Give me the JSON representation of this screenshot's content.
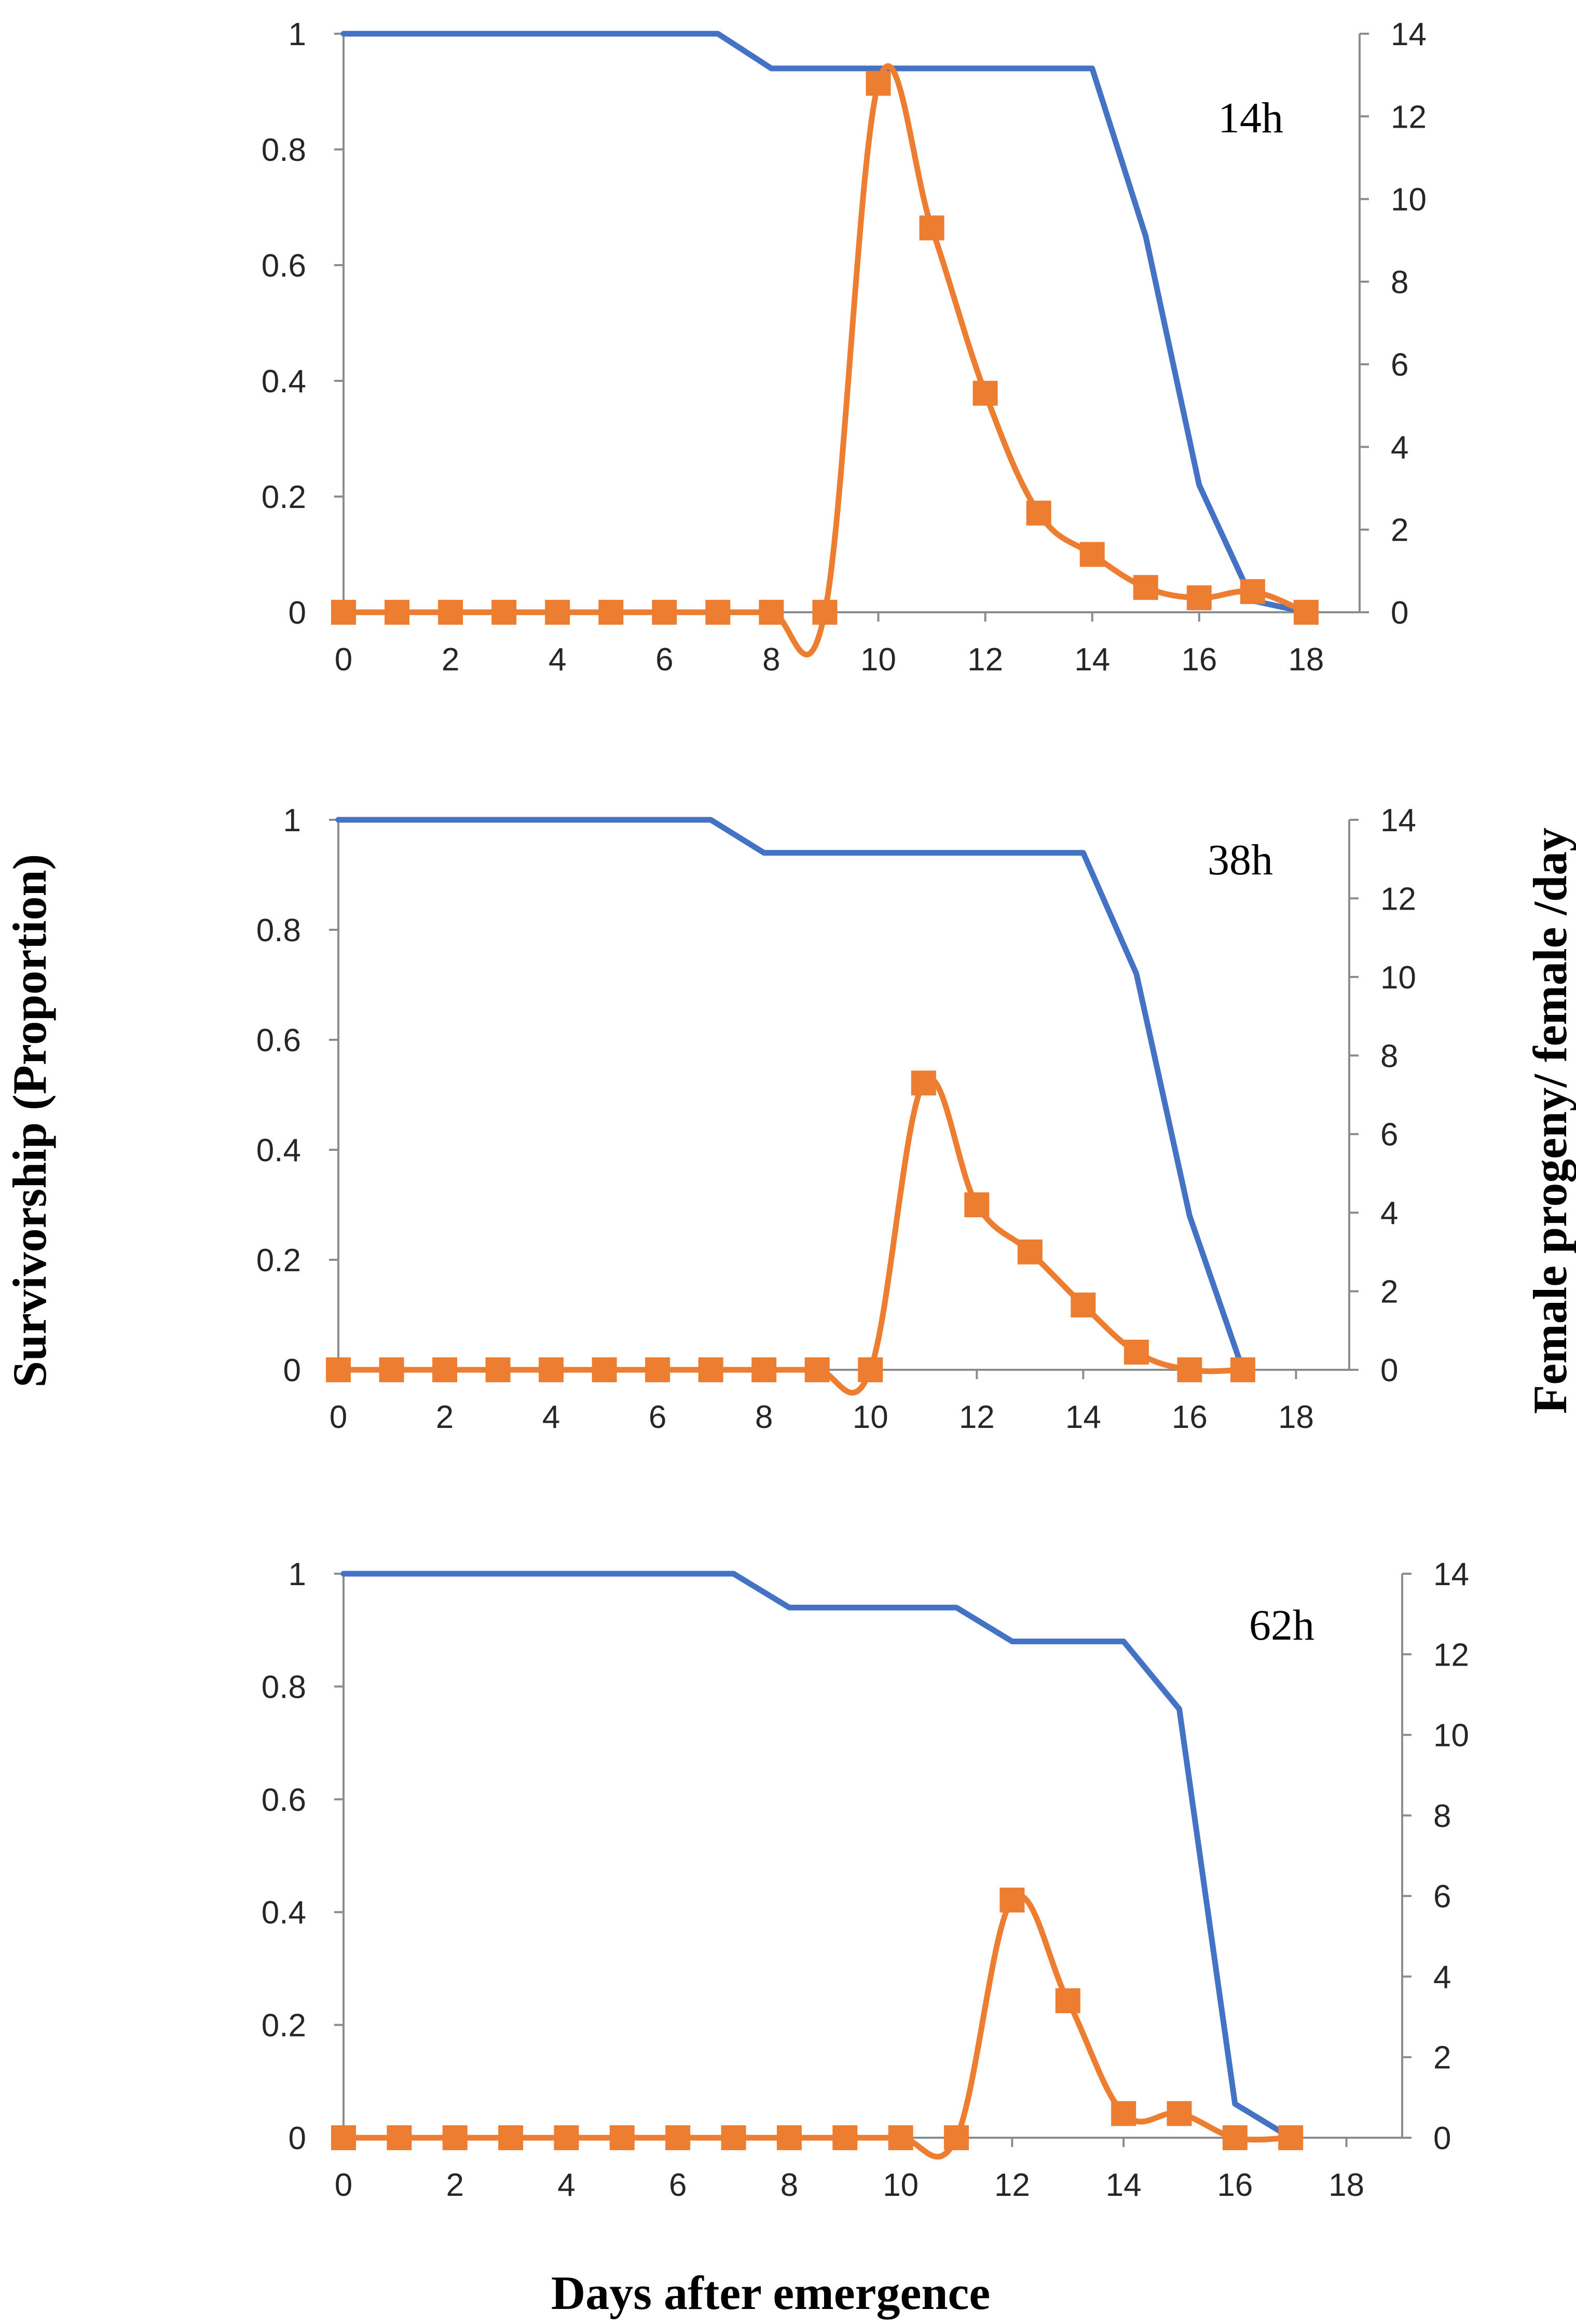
{
  "colors": {
    "survivorship": "#4472C4",
    "progeny": "#ED7D31"
  },
  "figure": {
    "ylabel_left": "Survivorship (Proportion)",
    "ylabel_right": "Female progeny/ female /day",
    "xlabel": "Days after emergence"
  },
  "chart_data": [
    {
      "type": "line",
      "title": "14h",
      "xlabel": "Days after emergence",
      "ylabel": "Survivorship (Proportion)",
      "y2label": "Female progeny/ female /day",
      "xlim": [
        0,
        19
      ],
      "ylim": [
        0,
        1
      ],
      "y2lim": [
        0,
        14
      ],
      "x_ticks": [
        0,
        2,
        4,
        6,
        8,
        10,
        12,
        14,
        16,
        18
      ],
      "y_ticks": [
        0,
        0.2,
        0.4,
        0.6,
        0.8,
        1
      ],
      "y2_ticks": [
        0,
        2,
        4,
        6,
        8,
        10,
        12,
        14
      ],
      "series": [
        {
          "name": "Survivorship",
          "axis": "left",
          "marker": "none",
          "x": [
            0,
            1,
            2,
            3,
            4,
            5,
            6,
            7,
            8,
            9,
            10,
            11,
            12,
            13,
            14,
            15,
            16,
            17,
            18
          ],
          "values": [
            1,
            1,
            1,
            1,
            1,
            1,
            1,
            1,
            0.94,
            0.94,
            0.94,
            0.94,
            0.94,
            0.94,
            0.94,
            0.65,
            0.22,
            0.02,
            0
          ]
        },
        {
          "name": "Female progeny/female/day",
          "axis": "right",
          "marker": "square",
          "x": [
            0,
            1,
            2,
            3,
            4,
            5,
            6,
            7,
            8,
            9,
            10,
            11,
            12,
            13,
            14,
            15,
            16,
            17,
            18
          ],
          "values": [
            0,
            0,
            0,
            0,
            0,
            0,
            0,
            0,
            0,
            0,
            12.8,
            9.3,
            5.3,
            2.4,
            1.4,
            0.6,
            0.35,
            0.5,
            0
          ]
        }
      ]
    },
    {
      "type": "line",
      "title": "38h",
      "xlabel": "Days after emergence",
      "ylabel": "Survivorship (Proportion)",
      "y2label": "Female progeny/ female /day",
      "xlim": [
        0,
        19
      ],
      "ylim": [
        0,
        1
      ],
      "y2lim": [
        0,
        14
      ],
      "x_ticks": [
        0,
        2,
        4,
        6,
        8,
        10,
        12,
        14,
        16,
        18
      ],
      "y_ticks": [
        0,
        0.2,
        0.4,
        0.6,
        0.8,
        1
      ],
      "y2_ticks": [
        0,
        2,
        4,
        6,
        8,
        10,
        12,
        14
      ],
      "series": [
        {
          "name": "Survivorship",
          "axis": "left",
          "marker": "none",
          "x": [
            0,
            1,
            2,
            3,
            4,
            5,
            6,
            7,
            8,
            9,
            10,
            11,
            12,
            13,
            14,
            15,
            16,
            17
          ],
          "values": [
            1,
            1,
            1,
            1,
            1,
            1,
            1,
            1,
            0.94,
            0.94,
            0.94,
            0.94,
            0.94,
            0.94,
            0.94,
            0.72,
            0.28,
            0
          ]
        },
        {
          "name": "Female progeny/female/day",
          "axis": "right",
          "marker": "square",
          "x": [
            0,
            1,
            2,
            3,
            4,
            5,
            6,
            7,
            8,
            9,
            10,
            11,
            12,
            13,
            14,
            15,
            16,
            17
          ],
          "values": [
            0,
            0,
            0,
            0,
            0,
            0,
            0,
            0,
            0,
            0,
            0,
            7.3,
            4.2,
            3.0,
            1.65,
            0.45,
            0,
            0
          ]
        }
      ]
    },
    {
      "type": "line",
      "title": "62h",
      "xlabel": "Days after emergence",
      "ylabel": "Survivorship (Proportion)",
      "y2label": "Female progeny/ female /day",
      "xlim": [
        0,
        19
      ],
      "ylim": [
        0,
        1
      ],
      "y2lim": [
        0,
        14
      ],
      "x_ticks": [
        0,
        2,
        4,
        6,
        8,
        10,
        12,
        14,
        16,
        18
      ],
      "y_ticks": [
        0,
        0.2,
        0.4,
        0.6,
        0.8,
        1
      ],
      "y2_ticks": [
        0,
        2,
        4,
        6,
        8,
        10,
        12,
        14
      ],
      "series": [
        {
          "name": "Survivorship",
          "axis": "left",
          "marker": "none",
          "x": [
            0,
            1,
            2,
            3,
            4,
            5,
            6,
            7,
            8,
            9,
            10,
            11,
            12,
            13,
            14,
            15,
            16,
            17
          ],
          "values": [
            1,
            1,
            1,
            1,
            1,
            1,
            1,
            1,
            0.94,
            0.94,
            0.94,
            0.94,
            0.88,
            0.88,
            0.88,
            0.76,
            0.06,
            0
          ]
        },
        {
          "name": "Female progeny/female/day",
          "axis": "right",
          "marker": "square",
          "x": [
            0,
            1,
            2,
            3,
            4,
            5,
            6,
            7,
            8,
            9,
            10,
            11,
            12,
            13,
            14,
            15,
            16,
            17
          ],
          "values": [
            0,
            0,
            0,
            0,
            0,
            0,
            0,
            0,
            0,
            0,
            0,
            0,
            5.9,
            3.4,
            0.6,
            0.6,
            0,
            0
          ]
        }
      ]
    }
  ]
}
